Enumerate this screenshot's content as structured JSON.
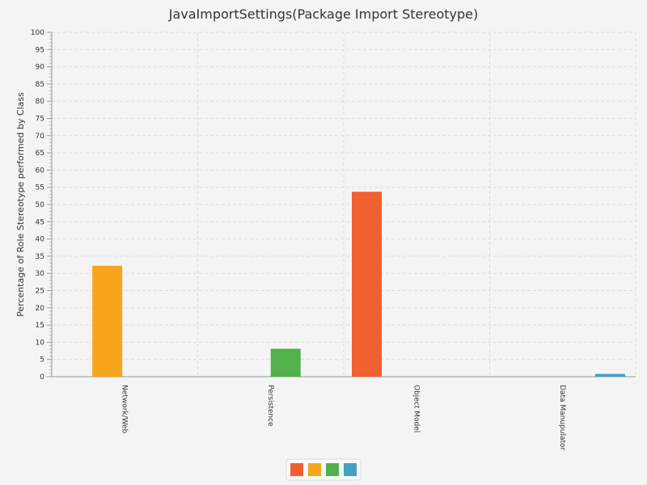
{
  "chart_data": {
    "type": "bar",
    "title": "JavaImportSettings(Package Import Stereotype)",
    "xlabel": "",
    "ylabel": "Percentage of Role Stereotype performed by Class",
    "ylim": [
      0,
      100
    ],
    "yticks": [
      "0",
      "5",
      "10",
      "15",
      "20",
      "25",
      "30",
      "35",
      "40",
      "45",
      "50",
      "55",
      "60",
      "65",
      "70",
      "75",
      "80",
      "85",
      "90",
      "95",
      "100"
    ],
    "grid": true,
    "legend_position": "bottom-center",
    "categories": [
      "Network/Web",
      "Persistence",
      "Object Model",
      "Data Manupulator"
    ],
    "series": [
      {
        "color": "#f06030",
        "values": [
          0,
          0,
          53.7,
          0
        ]
      },
      {
        "color": "#f7a51c",
        "values": [
          32.2,
          0,
          0,
          0
        ]
      },
      {
        "color": "#52b04d",
        "values": [
          0,
          8.1,
          0,
          0
        ]
      },
      {
        "color": "#41a3c1",
        "values": [
          0,
          0,
          0,
          0.8
        ]
      }
    ]
  }
}
